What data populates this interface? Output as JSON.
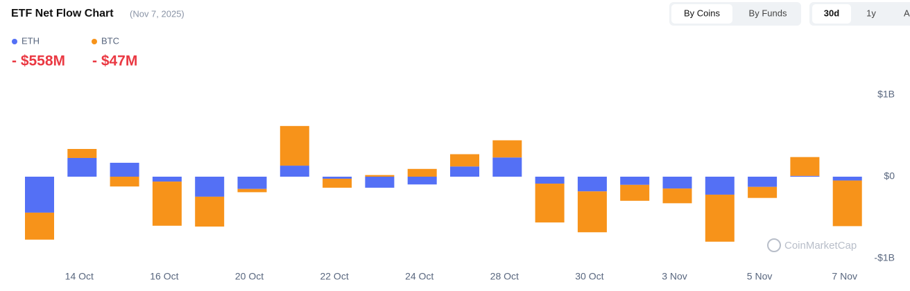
{
  "header": {
    "title": "ETF Net Flow Chart",
    "date": "(Nov 7, 2025)",
    "view_tabs": [
      "By Coins",
      "By Funds"
    ],
    "range_tabs": [
      "30d",
      "1y",
      "All"
    ],
    "totals": [
      "- $558M",
      "- $47M"
    ],
    "watermark": "CoinMarketCap"
  },
  "chart_data": {
    "type": "stacked-bar",
    "categories": [
      null,
      "14 Oct",
      null,
      "16 Oct",
      null,
      "20 Oct",
      null,
      "22 Oct",
      null,
      "24 Oct",
      null,
      "28 Oct",
      null,
      "30 Oct",
      null,
      "3 Nov",
      null,
      "5 Nov",
      null,
      "7 Nov"
    ],
    "series": [
      {
        "name": "ETH",
        "color": "#5470f5",
        "values": [
          -440,
          229,
          170,
          -60,
          -245,
          -150,
          135,
          -25,
          -135,
          -95,
          125,
          235,
          -85,
          -180,
          -100,
          -145,
          -220,
          -125,
          10,
          -47
        ]
      },
      {
        "name": "BTC",
        "color": "#f7931a",
        "values": [
          -330,
          110,
          -120,
          -540,
          -365,
          -40,
          485,
          -110,
          20,
          95,
          150,
          210,
          -475,
          -500,
          -195,
          -180,
          -575,
          -135,
          230,
          -558
        ]
      }
    ],
    "ylim": [
      -1000,
      1000
    ],
    "yticks": [
      {
        "value": 1000,
        "label": "$1B"
      },
      {
        "value": 0,
        "label": "$0"
      },
      {
        "value": -1000,
        "label": "-$1B"
      }
    ],
    "grid": false
  }
}
